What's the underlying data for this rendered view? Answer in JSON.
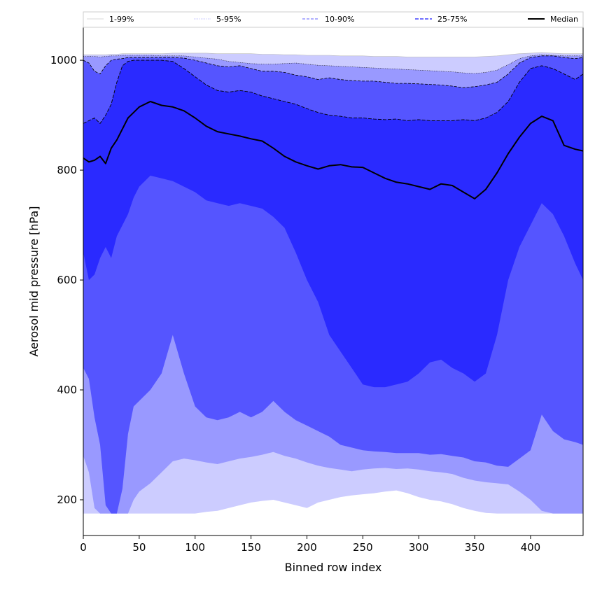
{
  "chart_data": {
    "type": "area",
    "title": "",
    "xlabel": "Binned row index",
    "ylabel": "Aerosol mid pressure [hPa]",
    "xlim": [
      0,
      447
    ],
    "ylim": [
      135,
      1060
    ],
    "x_ticks": [
      0,
      50,
      100,
      150,
      200,
      250,
      300,
      350,
      400
    ],
    "y_ticks": [
      200,
      400,
      600,
      800,
      1000
    ],
    "grid": false,
    "legend_position": "top",
    "legend": [
      {
        "label": "1-99%",
        "color": "#cccccc",
        "style": "solid"
      },
      {
        "label": "5-95%",
        "color": "#9999ff",
        "style": "dotted"
      },
      {
        "label": "10-90%",
        "color": "#8080ff",
        "style": "dashed"
      },
      {
        "label": "25-75%",
        "color": "#4040ff",
        "style": "dashed"
      },
      {
        "label": "Median",
        "color": "#000000",
        "style": "solid"
      }
    ],
    "band_colors": [
      "#ccccff",
      "#9999ff",
      "#5555ff",
      "#2a2aff"
    ],
    "x": [
      0,
      5,
      10,
      15,
      20,
      25,
      30,
      35,
      40,
      45,
      50,
      60,
      70,
      80,
      90,
      100,
      110,
      120,
      130,
      140,
      150,
      160,
      170,
      180,
      190,
      200,
      210,
      220,
      230,
      240,
      250,
      260,
      270,
      280,
      290,
      300,
      310,
      320,
      330,
      340,
      350,
      360,
      370,
      380,
      390,
      400,
      410,
      420,
      430,
      440,
      447
    ],
    "series": [
      {
        "name": "p1",
        "values": [
          175,
          175,
          175,
          175,
          175,
          175,
          175,
          175,
          175,
          175,
          175,
          175,
          175,
          175,
          175,
          175,
          178,
          180,
          185,
          190,
          195,
          198,
          200,
          195,
          190,
          185,
          195,
          200,
          205,
          208,
          210,
          212,
          215,
          217,
          212,
          205,
          200,
          197,
          192,
          185,
          180,
          176,
          175,
          175,
          175,
          175,
          175,
          175,
          175,
          175,
          175
        ]
      },
      {
        "name": "p5",
        "values": [
          280,
          250,
          185,
          175,
          175,
          175,
          175,
          175,
          175,
          200,
          215,
          230,
          250,
          270,
          275,
          272,
          268,
          265,
          270,
          275,
          278,
          282,
          287,
          280,
          275,
          268,
          262,
          258,
          255,
          252,
          255,
          257,
          258,
          256,
          257,
          255,
          252,
          250,
          247,
          240,
          235,
          232,
          230,
          228,
          215,
          200,
          180,
          175,
          175,
          175,
          175
        ]
      },
      {
        "name": "p10",
        "values": [
          440,
          420,
          350,
          300,
          190,
          175,
          175,
          220,
          320,
          370,
          380,
          400,
          430,
          500,
          430,
          370,
          350,
          345,
          350,
          360,
          350,
          360,
          380,
          360,
          345,
          335,
          325,
          315,
          300,
          295,
          290,
          288,
          287,
          285,
          285,
          285,
          282,
          283,
          280,
          277,
          270,
          268,
          262,
          260,
          275,
          290,
          355,
          325,
          310,
          305,
          300
        ]
      },
      {
        "name": "p25",
        "values": [
          650,
          600,
          610,
          640,
          660,
          640,
          680,
          700,
          720,
          750,
          770,
          790,
          785,
          780,
          770,
          760,
          745,
          740,
          735,
          740,
          735,
          730,
          715,
          695,
          650,
          600,
          560,
          500,
          470,
          440,
          410,
          405,
          405,
          410,
          415,
          430,
          450,
          455,
          440,
          430,
          415,
          430,
          500,
          600,
          660,
          700,
          740,
          720,
          680,
          630,
          600
        ]
      },
      {
        "name": "p75",
        "values": [
          885,
          890,
          895,
          885,
          900,
          920,
          960,
          990,
          998,
          1000,
          1000,
          1000,
          1000,
          998,
          985,
          970,
          955,
          945,
          942,
          945,
          942,
          935,
          930,
          925,
          920,
          912,
          905,
          900,
          898,
          895,
          895,
          893,
          892,
          893,
          890,
          892,
          890,
          890,
          890,
          892,
          890,
          895,
          905,
          925,
          960,
          985,
          990,
          985,
          975,
          965,
          975
        ]
      },
      {
        "name": "p90",
        "values": [
          1000,
          995,
          980,
          975,
          990,
          1000,
          1002,
          1003,
          1005,
          1005,
          1005,
          1005,
          1005,
          1005,
          1004,
          1000,
          995,
          990,
          988,
          990,
          985,
          980,
          980,
          978,
          973,
          970,
          965,
          968,
          965,
          963,
          962,
          962,
          960,
          958,
          958,
          957,
          956,
          955,
          953,
          950,
          952,
          955,
          960,
          975,
          995,
          1005,
          1008,
          1008,
          1005,
          1003,
          1005
        ]
      },
      {
        "name": "p95",
        "values": [
          1007,
          1007,
          1007,
          1006,
          1007,
          1008,
          1008,
          1009,
          1009,
          1009,
          1009,
          1009,
          1008,
          1008,
          1008,
          1006,
          1004,
          1002,
          998,
          996,
          994,
          993,
          993,
          994,
          995,
          993,
          991,
          990,
          989,
          988,
          987,
          986,
          985,
          984,
          983,
          982,
          981,
          980,
          979,
          977,
          976,
          978,
          982,
          992,
          1003,
          1008,
          1010,
          1009,
          1008,
          1008,
          1008
        ]
      },
      {
        "name": "p99",
        "values": [
          1010,
          1010,
          1010,
          1010,
          1010,
          1011,
          1011,
          1012,
          1012,
          1012,
          1012,
          1012,
          1012,
          1013,
          1013,
          1013,
          1013,
          1012,
          1012,
          1012,
          1012,
          1011,
          1011,
          1010,
          1010,
          1009,
          1009,
          1009,
          1008,
          1008,
          1008,
          1007,
          1007,
          1007,
          1006,
          1006,
          1006,
          1006,
          1006,
          1006,
          1006,
          1007,
          1008,
          1010,
          1012,
          1013,
          1014,
          1013,
          1012,
          1012,
          1012
        ]
      },
      {
        "name": "Median",
        "values": [
          822,
          815,
          818,
          825,
          812,
          840,
          855,
          875,
          895,
          905,
          915,
          925,
          918,
          915,
          908,
          895,
          880,
          870,
          866,
          862,
          857,
          853,
          840,
          825,
          815,
          808,
          802,
          808,
          810,
          806,
          805,
          795,
          785,
          778,
          775,
          770,
          765,
          775,
          772,
          760,
          748,
          765,
          795,
          830,
          860,
          885,
          898,
          890,
          845,
          838,
          835
        ]
      }
    ]
  }
}
